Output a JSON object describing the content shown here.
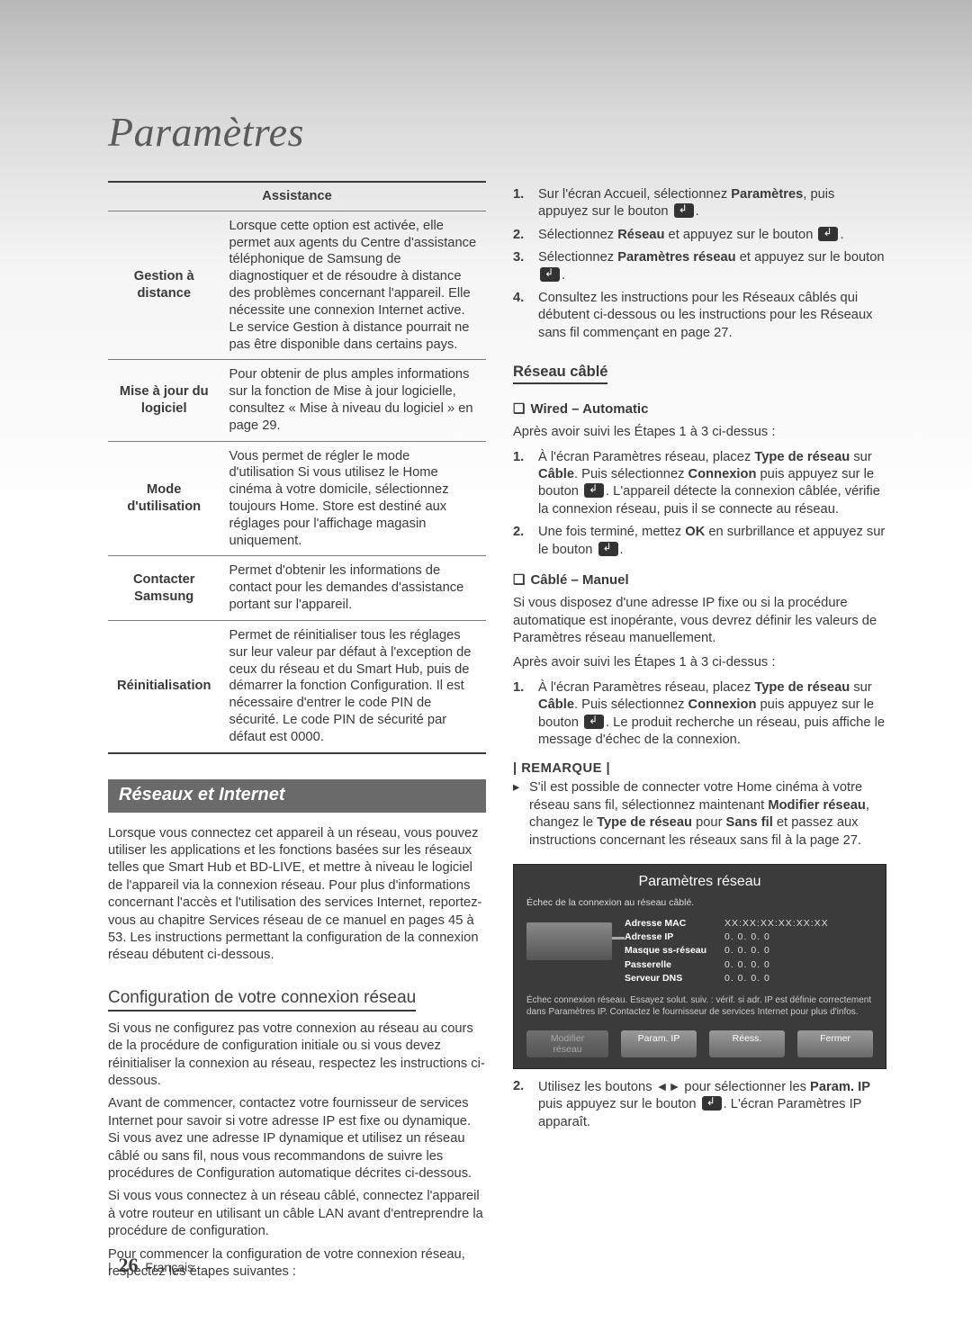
{
  "title": "Paramètres",
  "table": {
    "header": "Assistance",
    "rows": [
      {
        "label": "Gestion à distance",
        "text": "Lorsque cette option est activée, elle permet aux agents du Centre d'assistance téléphonique de Samsung de diagnostiquer et de résoudre à distance des problèmes concernant l'appareil. Elle nécessite une connexion Internet active. Le service Gestion à distance pourrait ne pas être disponible dans certains pays."
      },
      {
        "label": "Mise à jour du logiciel",
        "text": "Pour obtenir de plus amples informations sur la fonction de Mise à jour logicielle, consultez « Mise à niveau du logiciel » en page 29."
      },
      {
        "label": "Mode d'utilisation",
        "text": "Vous permet de régler le mode d'utilisation Si vous utilisez le Home cinéma à votre domicile, sélectionnez toujours Home. Store est destiné aux réglages pour l'affichage magasin uniquement."
      },
      {
        "label": "Contacter Samsung",
        "text": "Permet d'obtenir les informations de contact pour les demandes d'assistance portant sur l'appareil."
      },
      {
        "label": "Réinitialisation",
        "text": "Permet de réinitialiser tous les réglages sur leur valeur par défaut à l'exception de ceux du réseau et du Smart Hub, puis de démarrer la fonction Configuration. Il est nécessaire d'entrer le code PIN de sécurité. Le code PIN de sécurité par défaut est 0000."
      }
    ]
  },
  "section1": {
    "heading": "Réseaux et Internet",
    "para": "Lorsque vous connectez cet appareil à un réseau, vous pouvez utiliser les applications et les fonctions basées sur les réseaux telles que Smart Hub et BD-LIVE, et mettre à niveau le logiciel de l'appareil via la connexion réseau. Pour plus d'informations concernant l'accès et l'utilisation des services Internet, reportez-vous au chapitre Services réseau de ce manuel en pages 45 à 53. Les instructions permettant la configuration de la connexion réseau débutent ci-dessous."
  },
  "config": {
    "heading": "Configuration de votre connexion réseau",
    "p1": "Si vous ne configurez pas votre connexion au réseau au cours de la procédure de configuration initiale ou si vous devez réinitialiser la connexion au réseau, respectez les instructions ci-dessous.",
    "p2": "Avant de commencer, contactez votre fournisseur de services Internet pour savoir si votre adresse IP est fixe ou dynamique. Si vous avez une adresse IP dynamique et utilisez un réseau câblé ou sans fil, nous vous recommandons de suivre les procédures de Configuration automatique décrites ci-dessous.",
    "p3": "Si vous vous connectez à un réseau câblé, connectez l'appareil à votre routeur en utilisant un câble LAN avant d'entreprendre la procédure de configuration.",
    "p4": "Pour commencer la configuration de votre connexion réseau, respectez les étapes suivantes :"
  },
  "rightTop": {
    "s1a": "Sur l'écran Accueil, sélectionnez ",
    "s1b": "Paramètres",
    "s1c": ", puis appuyez sur le bouton ",
    "s2a": "Sélectionnez ",
    "s2b": "Réseau",
    "s2c": " et appuyez sur le bouton ",
    "s3a": "Sélectionnez ",
    "s3b": "Paramètres réseau",
    "s3c": " et appuyez sur le bouton ",
    "s4": "Consultez les instructions pour les Réseaux câblés qui débutent ci-dessous ou les instructions pour les Réseaux sans fil commençant en page 27."
  },
  "wired": {
    "heading": "Réseau câblé",
    "auto_title": "Wired – Automatic",
    "auto_intro": "Après avoir suivi les Étapes 1 à 3 ci-dessus :",
    "a1": "À l'écran Paramètres réseau, placez ",
    "a1b": "Type de réseau",
    "a1c": " sur ",
    "a1d": "Câble",
    "a1e": ". Puis sélectionnez ",
    "a1f": "Connexion",
    "a1g": " puis appuyez sur le bouton ",
    "a1h": ". L'appareil détecte la connexion câblée, vérifie la connexion réseau, puis il se connecte au réseau.",
    "a2a": "Une fois terminé, mettez ",
    "a2b": "OK",
    "a2c": " en surbrillance et appuyez sur le bouton ",
    "manual_title": "Câblé – Manuel",
    "manual_p1": "Si vous disposez d'une adresse IP fixe ou si la procédure automatique est inopérante, vous devrez définir les valeurs de Paramètres réseau manuellement.",
    "manual_p2": "Après avoir suivi les Étapes 1 à 3 ci-dessus :",
    "m1a": "À l'écran Paramètres réseau, placez ",
    "m1b": "Type de réseau",
    "m1c": " sur ",
    "m1d": "Câble",
    "m1e": ". Puis sélectionnez ",
    "m1f": "Connexion",
    "m1g": " puis appuyez sur le bouton ",
    "m1h": ". Le produit recherche un réseau, puis affiche le message d'échec de la connexion."
  },
  "remarque": {
    "label": "| REMARQUE |",
    "text": "S'il est possible de connecter votre Home cinéma à votre réseau sans fil, sélectionnez maintenant ",
    "b1": "Modifier réseau",
    "mid": ", changez le ",
    "b2": "Type de réseau",
    "mid2": " pour ",
    "b3": "Sans fil",
    "tail": " et passez aux instructions concernant les réseaux sans fil à la page 27."
  },
  "panel": {
    "title": "Paramètres réseau",
    "sub": "Échec de la connexion au réseau câblé.",
    "kv": [
      {
        "k": "Adresse MAC",
        "v": "XX:XX:XX:XX:XX:XX"
      },
      {
        "k": "Adresse IP",
        "v": "0. 0. 0. 0"
      },
      {
        "k": "Masque ss-réseau",
        "v": "0. 0. 0. 0"
      },
      {
        "k": "Passerelle",
        "v": "0. 0. 0. 0"
      },
      {
        "k": "Serveur DNS",
        "v": "0. 0. 0. 0"
      }
    ],
    "msg": "Échec connexion réseau. Essayez solut. suiv. : vérif. si adr. IP est définie correctement dans Paramètres IP. Contactez le fournisseur de services Internet pour plus d'infos.",
    "btns": [
      "Modifier réseau",
      "Param. IP",
      "Réess.",
      "Fermer"
    ]
  },
  "after_panel": {
    "a": "Utilisez les boutons ",
    "arrows": "◄►",
    "b": " pour sélectionner les ",
    "c": "Param. IP",
    "d": " puis appuyez sur le bouton ",
    "e": ". L'écran Paramètres IP apparaît."
  },
  "footer": {
    "bar": "|",
    "page": "26",
    "lang": "Français"
  }
}
